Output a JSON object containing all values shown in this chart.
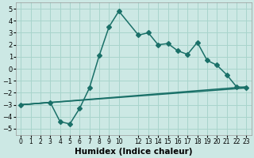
{
  "xlabel": "Humidex (Indice chaleur)",
  "xlim": [
    -0.5,
    23.5
  ],
  "ylim": [
    -5.5,
    5.5
  ],
  "xticks": [
    0,
    1,
    2,
    3,
    4,
    5,
    6,
    7,
    8,
    9,
    10,
    12,
    13,
    14,
    15,
    16,
    17,
    18,
    19,
    20,
    21,
    22,
    23
  ],
  "yticks": [
    -5,
    -4,
    -3,
    -2,
    -1,
    0,
    1,
    2,
    3,
    4,
    5
  ],
  "bg_color": "#cce8e4",
  "grid_color": "#a8d4cc",
  "line_color": "#1a7068",
  "line1_x": [
    0,
    3,
    4,
    5,
    6,
    7,
    8,
    9,
    10,
    12,
    13,
    14,
    15,
    16,
    17,
    18,
    19,
    20,
    21,
    22,
    23
  ],
  "line1_y": [
    -3.0,
    -2.8,
    -4.4,
    -4.6,
    -3.3,
    -1.6,
    1.1,
    3.5,
    4.8,
    2.8,
    3.0,
    2.0,
    2.1,
    1.5,
    1.2,
    2.2,
    0.7,
    0.3,
    -0.5,
    -1.5,
    -1.6
  ],
  "line2_x": [
    0,
    23
  ],
  "line2_y": [
    -3.0,
    -1.5
  ],
  "line3_x": [
    0,
    23
  ],
  "line3_y": [
    -3.0,
    -1.6
  ],
  "marker": "D",
  "markersize": 3,
  "linewidth": 1.1,
  "tick_fontsize": 6,
  "label_fontsize": 7.5
}
